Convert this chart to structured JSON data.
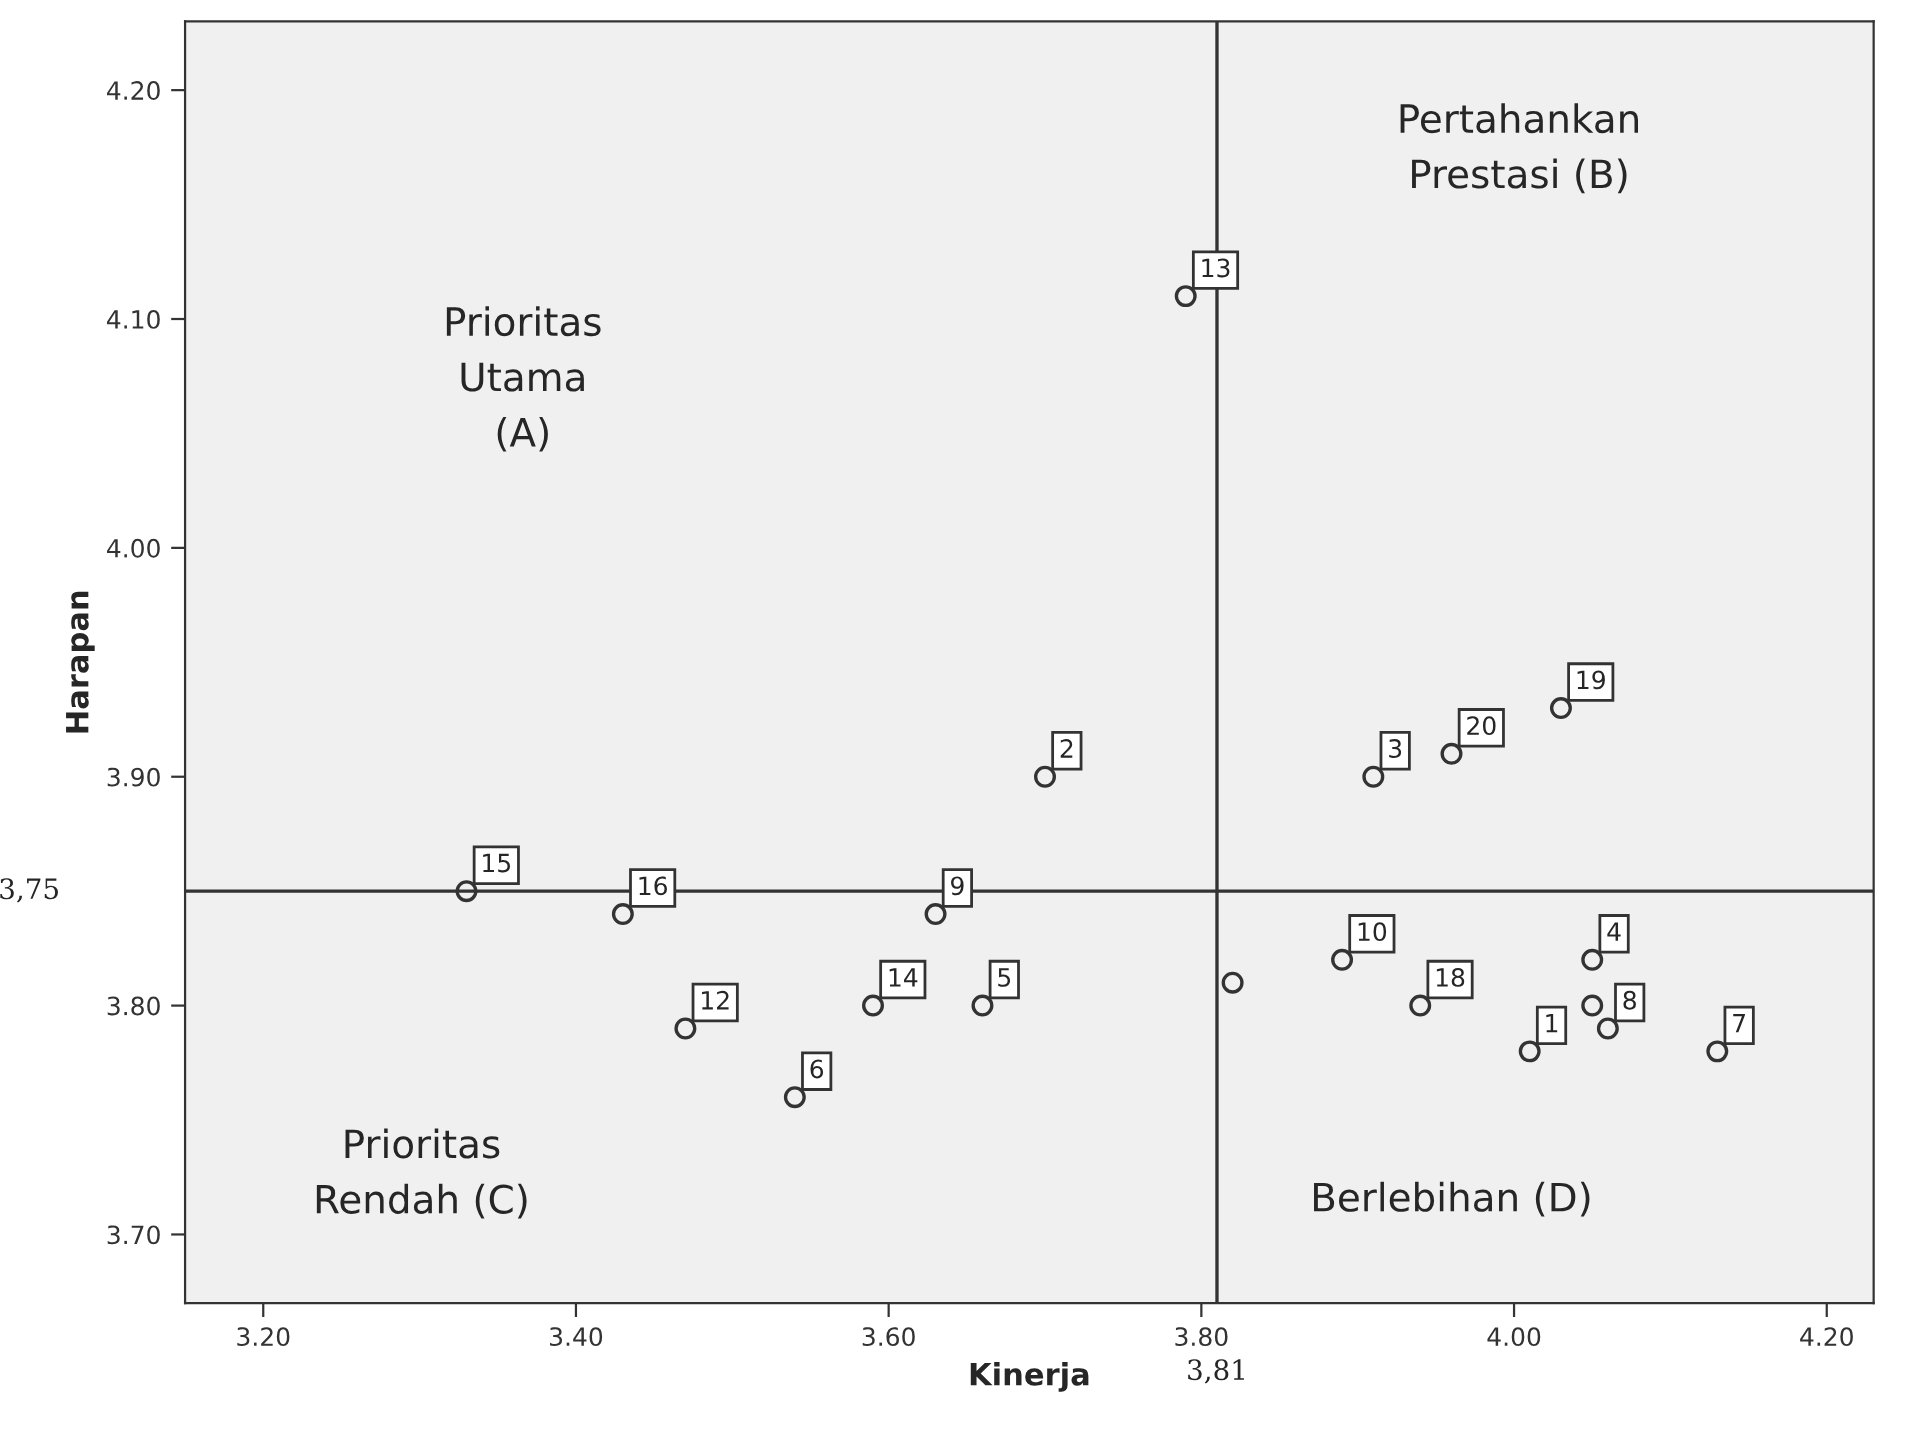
{
  "chart_data": {
    "type": "scatter",
    "xlabel": "Kinerja",
    "ylabel": "Harapan",
    "x": [
      4.01,
      3.7,
      3.91,
      4.05,
      3.66,
      3.54,
      4.13,
      4.06,
      3.63,
      3.89,
      3.82,
      3.47,
      3.79,
      3.59,
      3.33,
      3.43,
      4.05,
      3.94,
      4.03,
      3.96
    ],
    "values": [
      3.78,
      3.9,
      3.9,
      3.82,
      3.8,
      3.76,
      3.78,
      3.79,
      3.84,
      3.82,
      3.81,
      3.79,
      4.11,
      3.8,
      3.85,
      3.84,
      3.8,
      3.8,
      3.93,
      3.91
    ],
    "color": "#333333",
    "marker": "circle",
    "xlim": [
      3.15,
      4.23
    ],
    "ylim": [
      3.67,
      4.23
    ],
    "xticks": [
      {
        "value": 3.2,
        "label": "3.20"
      },
      {
        "value": 3.4,
        "label": "3.40"
      },
      {
        "value": 3.6,
        "label": "3.60"
      },
      {
        "value": 3.8,
        "label": "3.80"
      },
      {
        "value": 4.0,
        "label": "4.00"
      },
      {
        "value": 4.2,
        "label": "4.20"
      }
    ],
    "yticks": [
      {
        "value": 3.7,
        "label": "3.70"
      },
      {
        "value": 3.8,
        "label": "3.80"
      },
      {
        "value": 3.9,
        "label": "3.90"
      },
      {
        "value": 4.0,
        "label": "4.00"
      },
      {
        "value": 4.1,
        "label": "4.10"
      },
      {
        "value": 4.2,
        "label": "4.20"
      }
    ],
    "ref_lines": [
      {
        "axis": "x",
        "value": 3.81,
        "label": "3,81"
      },
      {
        "axis": "y",
        "value": 3.85
      }
    ],
    "annotations": [
      "Prioritas\nUtama\n(A)",
      "Pertahankan\nPrestasi (B)",
      "Prioritas\nRendah (C)",
      "Berlebihan (D)",
      "3,75",
      {
        "text": "1",
        "x": 4.01,
        "y": 3.78
      },
      {
        "text": "2",
        "x": 3.7,
        "y": 3.9
      },
      {
        "text": "3",
        "x": 3.91,
        "y": 3.9
      },
      {
        "text": "4",
        "x": 4.05,
        "y": 3.82
      },
      {
        "text": "5",
        "x": 3.66,
        "y": 3.8
      },
      {
        "text": "6",
        "x": 3.54,
        "y": 3.76
      },
      {
        "text": "7",
        "x": 4.13,
        "y": 3.78
      },
      {
        "text": "8",
        "x": 4.06,
        "y": 3.79
      },
      {
        "text": "9",
        "x": 3.63,
        "y": 3.84
      },
      {
        "text": "10",
        "x": 3.89,
        "y": 3.82
      },
      {
        "text": "12",
        "x": 3.47,
        "y": 3.79
      },
      {
        "text": "13",
        "x": 3.79,
        "y": 4.11
      },
      {
        "text": "14",
        "x": 3.59,
        "y": 3.8
      },
      {
        "text": "15",
        "x": 3.33,
        "y": 3.85
      },
      {
        "text": "16",
        "x": 3.43,
        "y": 3.84
      },
      {
        "text": "18",
        "x": 3.94,
        "y": 3.8
      },
      {
        "text": "19",
        "x": 4.03,
        "y": 3.93
      },
      {
        "text": "20",
        "x": 3.96,
        "y": 3.91
      }
    ],
    "grid": false,
    "legend": false
  }
}
